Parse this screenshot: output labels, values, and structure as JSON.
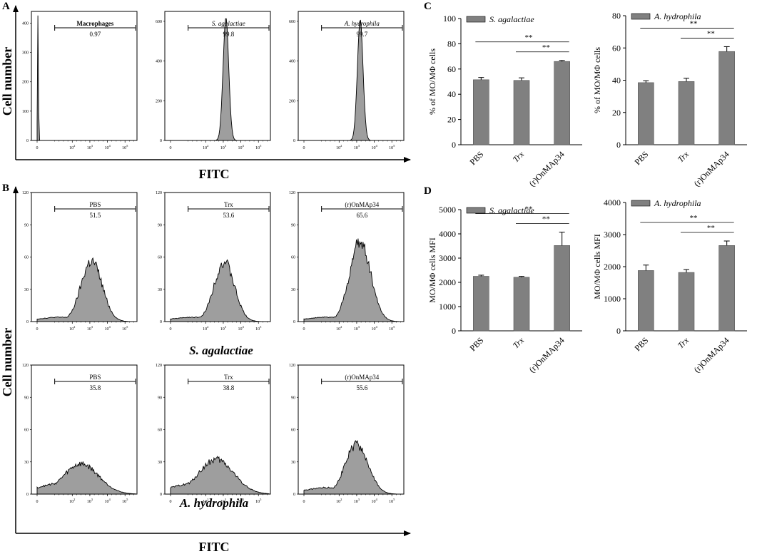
{
  "figure": {
    "panel_letters": [
      "A",
      "B",
      "C",
      "D"
    ],
    "y_axis_label": "Cell number",
    "x_axis_label": "FITC",
    "row_labels": [
      "S. agalactiae",
      "A. hydrophila"
    ]
  },
  "chart_data": [
    {
      "type": "area",
      "id": "A1",
      "panel": "A",
      "gate_label": "Macrophages",
      "gate_value": "0.97",
      "y_ticks": [
        "0",
        "100",
        "200",
        "300",
        "400"
      ],
      "ylim": [
        0,
        440
      ],
      "x_ticks": [
        "0",
        "10^2",
        "10^3",
        "10^4",
        "10^5"
      ],
      "distribution": {
        "center_decade": 0.05,
        "width": 0.025,
        "peak": 430
      }
    },
    {
      "type": "area",
      "id": "A2",
      "panel": "A",
      "gate_label": "S. agalactiae",
      "gate_value": "99.8",
      "y_ticks": [
        "0",
        "200",
        "400",
        "600"
      ],
      "ylim": [
        0,
        650
      ],
      "x_ticks": [
        "0",
        "10^2",
        "10^3",
        "10^4",
        "10^5"
      ],
      "distribution": {
        "center_decade": 3.15,
        "width": 0.16,
        "peak": 620
      }
    },
    {
      "type": "area",
      "id": "A3",
      "panel": "A",
      "gate_label": "A. hydrophila",
      "gate_value": "99.7",
      "y_ticks": [
        "0",
        "200",
        "400",
        "600"
      ],
      "ylim": [
        0,
        650
      ],
      "x_ticks": [
        "0",
        "10^2",
        "10^3",
        "10^4",
        "10^5"
      ],
      "distribution": {
        "center_decade": 3.2,
        "width": 0.16,
        "peak": 610
      }
    },
    {
      "type": "area",
      "id": "B1",
      "panel": "B",
      "gate_label": "PBS",
      "gate_value": "51.5",
      "y_ticks": [
        "0",
        "30",
        "60",
        "90",
        "120"
      ],
      "ylim": [
        0,
        120
      ],
      "x_ticks": [
        "0",
        "10^2",
        "10^3",
        "10^4",
        "10^5"
      ],
      "distribution": {
        "center_decade": 3.1,
        "width": 0.6,
        "peak": 56,
        "baseline": 4
      }
    },
    {
      "type": "area",
      "id": "B2",
      "panel": "B",
      "gate_label": "Trx",
      "gate_value": "53.6",
      "y_ticks": [
        "0",
        "30",
        "60",
        "90",
        "120"
      ],
      "ylim": [
        0,
        120
      ],
      "x_ticks": [
        "0",
        "10^2",
        "10^3",
        "10^4",
        "10^5"
      ],
      "distribution": {
        "center_decade": 3.05,
        "width": 0.58,
        "peak": 55,
        "baseline": 4
      }
    },
    {
      "type": "area",
      "id": "B3",
      "panel": "B",
      "gate_label": "(r)OnMAp34",
      "gate_value": "65.6",
      "y_ticks": [
        "0",
        "30",
        "60",
        "90",
        "120"
      ],
      "ylim": [
        0,
        120
      ],
      "x_ticks": [
        "0",
        "10^2",
        "10^3",
        "10^4",
        "10^5"
      ],
      "distribution": {
        "center_decade": 3.2,
        "width": 0.6,
        "peak": 74,
        "baseline": 4
      }
    },
    {
      "type": "area",
      "id": "B4",
      "panel": "B",
      "gate_label": "PBS",
      "gate_value": "35.8",
      "y_ticks": [
        "0",
        "30",
        "60",
        "90",
        "120"
      ],
      "ylim": [
        0,
        120
      ],
      "x_ticks": [
        "0",
        "10^2",
        "10^3",
        "10^4",
        "10^5"
      ],
      "distribution": {
        "center_decade": 2.5,
        "width": 1.0,
        "peak": 28,
        "baseline": 10
      }
    },
    {
      "type": "area",
      "id": "B5",
      "panel": "B",
      "gate_label": "Trx",
      "gate_value": "38.8",
      "y_ticks": [
        "0",
        "30",
        "60",
        "90",
        "120"
      ],
      "ylim": [
        0,
        120
      ],
      "x_ticks": [
        "0",
        "10^2",
        "10^3",
        "10^4",
        "10^5"
      ],
      "distribution": {
        "center_decade": 2.6,
        "width": 1.0,
        "peak": 32,
        "baseline": 10
      }
    },
    {
      "type": "area",
      "id": "B6",
      "panel": "B",
      "gate_label": "(r)OnMAp34",
      "gate_value": "55.6",
      "y_ticks": [
        "0",
        "30",
        "60",
        "90",
        "120"
      ],
      "ylim": [
        0,
        120
      ],
      "x_ticks": [
        "0",
        "10^2",
        "10^3",
        "10^4",
        "10^5"
      ],
      "distribution": {
        "center_decade": 3.0,
        "width": 0.65,
        "peak": 46,
        "baseline": 6
      }
    },
    {
      "type": "bar",
      "id": "C1",
      "panel": "C",
      "legend": "S. agalactiae",
      "ylabel": "% of MO/MΦ cells",
      "categories": [
        "PBS",
        "Trx",
        "(r)OnMAp34"
      ],
      "values": [
        51.5,
        51,
        66
      ],
      "errors": [
        1.8,
        2,
        0.8
      ],
      "ylim": [
        0,
        100
      ],
      "y_ticks": [
        "0",
        "20",
        "40",
        "60",
        "80",
        "100"
      ],
      "significance": [
        {
          "from": 0,
          "to": 2,
          "label": "**"
        },
        {
          "from": 1,
          "to": 2,
          "label": "**"
        }
      ]
    },
    {
      "type": "bar",
      "id": "C2",
      "panel": "C",
      "legend": "A. hydrophila",
      "ylabel": "% of MO/MΦ cells",
      "categories": [
        "PBS",
        "Trx",
        "(r)OnMAp34"
      ],
      "values": [
        38.5,
        39.2,
        57.8
      ],
      "errors": [
        1.2,
        2,
        3
      ],
      "ylim": [
        0,
        80
      ],
      "y_ticks": [
        "0",
        "20",
        "40",
        "60",
        "80"
      ],
      "significance": [
        {
          "from": 0,
          "to": 2,
          "label": "**"
        },
        {
          "from": 1,
          "to": 2,
          "label": "**"
        }
      ]
    },
    {
      "type": "bar",
      "id": "D1",
      "panel": "D",
      "legend": "S. agalactiae",
      "ylabel": "MO/MΦ cells MFI",
      "categories": [
        "PBS",
        "Trx",
        "(r)OnMAp34"
      ],
      "values": [
        2250,
        2210,
        3520
      ],
      "errors": [
        45,
        35,
        550
      ],
      "ylim": [
        0,
        5000
      ],
      "y_ticks": [
        "0",
        "1000",
        "2000",
        "3000",
        "4000",
        "5000"
      ],
      "significance": [
        {
          "from": 0,
          "to": 2,
          "label": "**"
        },
        {
          "from": 1,
          "to": 2,
          "label": "**"
        }
      ]
    },
    {
      "type": "bar",
      "id": "D2",
      "panel": "D",
      "legend": "A. hydrophila",
      "ylabel": "MO/MΦ cells MFI",
      "categories": [
        "PBS",
        "Trx",
        "(r)OnMAp34"
      ],
      "values": [
        1880,
        1820,
        2660
      ],
      "errors": [
        170,
        90,
        140
      ],
      "ylim": [
        0,
        4000
      ],
      "y_ticks": [
        "0",
        "1000",
        "2000",
        "3000",
        "4000"
      ],
      "significance": [
        {
          "from": 0,
          "to": 2,
          "label": "**"
        },
        {
          "from": 1,
          "to": 2,
          "label": "**"
        }
      ]
    }
  ]
}
